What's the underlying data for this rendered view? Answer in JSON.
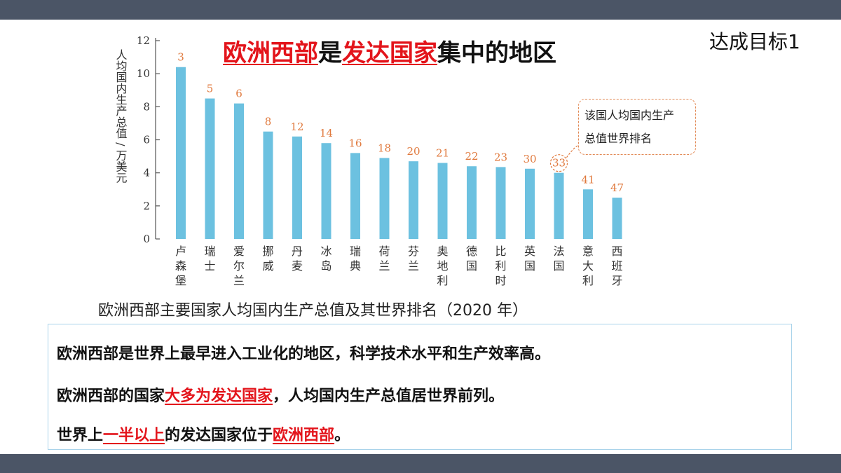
{
  "header": {
    "goal_label": "达成目标1"
  },
  "title": {
    "part1": "欧洲西部",
    "part2": "是",
    "part3": "发达国家",
    "part4": "集中的地区"
  },
  "caption": "欧洲西部主要国家人均国内生产总值及其世界排名（2020 年）",
  "callout": {
    "line1": "该国人均国内生产",
    "line2": "总值世界排名"
  },
  "summary": {
    "line1": "欧洲西部是世界上最早进入工业化的地区，科学技术水平和生产效率高。",
    "line2_a": "欧洲西部的国家",
    "line2_b": "大多为发达国家",
    "line2_c": "，人均国内生产总值居世界前列。",
    "line3_a": "世界上",
    "line3_b": "一半以上",
    "line3_c": "的发达国家位于",
    "line3_d": "欧洲西部",
    "line3_e": "。"
  },
  "colors": {
    "bar": "#6cc1e0",
    "rank_label": "#e0793d",
    "highlight": "#e3141b",
    "frame": "#4b5566"
  },
  "chart_data": {
    "type": "bar",
    "ylabel": "人均国内生产总值 / 万美元",
    "ylim": [
      0,
      12
    ],
    "yticks": [
      0,
      2,
      4,
      6,
      8,
      10,
      12
    ],
    "categories": [
      "卢森堡",
      "瑞士",
      "爱尔兰",
      "挪威",
      "丹麦",
      "冰岛",
      "瑞典",
      "荷兰",
      "芬兰",
      "奥地利",
      "德国",
      "比利时",
      "英国",
      "法国",
      "意大利",
      "西班牙"
    ],
    "values": [
      10.4,
      8.5,
      8.2,
      6.5,
      6.2,
      5.8,
      5.2,
      4.9,
      4.7,
      4.6,
      4.4,
      4.35,
      4.25,
      4.0,
      3.0,
      2.5
    ],
    "ranks": [
      "3",
      "5",
      "6",
      "8",
      "12",
      "14",
      "16",
      "18",
      "20",
      "21",
      "22",
      "23",
      "30",
      "33",
      "41",
      "47"
    ],
    "highlight_index": 13
  }
}
